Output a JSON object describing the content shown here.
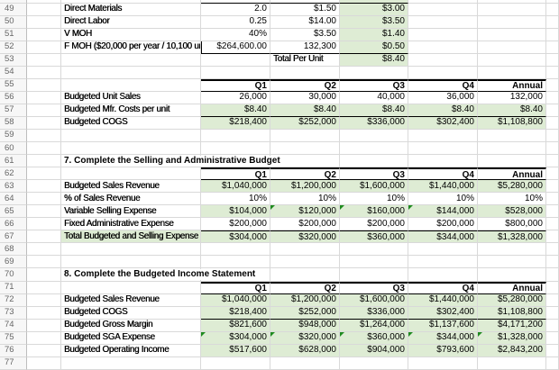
{
  "sheet": {
    "colors": {
      "gridline": "#d9d9d9",
      "section_border": "#000000",
      "highlight_fill_green": "#deecd4",
      "formula_warning_green": "#1f8b1f",
      "row_header_text": "#666666",
      "row_header_bg": "#f7f7f7"
    },
    "rows": [
      {
        "n": "",
        "sliver": true,
        "cells": {
          "D": {
            "t": "",
            "cls": "num bB"
          },
          "E": {
            "t": "",
            "cls": "num bB"
          },
          "F": {
            "t": "",
            "cls": "num green bB"
          }
        }
      },
      {
        "n": 49,
        "cells": {
          "C": {
            "t": "Direct Materials",
            "cls": "lbl"
          },
          "D": {
            "t": "2.0",
            "cls": "num"
          },
          "E": {
            "t": "$1.50",
            "cls": "num"
          },
          "F": {
            "t": "$3.00",
            "cls": "num green"
          }
        }
      },
      {
        "n": 50,
        "cells": {
          "C": {
            "t": "Direct Labor",
            "cls": "lbl"
          },
          "D": {
            "t": "0.25",
            "cls": "num"
          },
          "E": {
            "t": "$14.00",
            "cls": "num"
          },
          "F": {
            "t": "$3.50",
            "cls": "num green"
          }
        }
      },
      {
        "n": 51,
        "cells": {
          "C": {
            "t": "V MOH",
            "cls": "lbl"
          },
          "D": {
            "t": "40%",
            "cls": "num"
          },
          "E": {
            "t": "$3.50",
            "cls": "num"
          },
          "F": {
            "t": "$1.40",
            "cls": "num green"
          }
        }
      },
      {
        "n": 52,
        "cells": {
          "C": {
            "t": "F MOH ($20,000 per year / 10,100 un",
            "cls": "lbl"
          },
          "D": {
            "t": "$264,600.00",
            "cls": "num bB bL"
          },
          "E": {
            "t": "132,300",
            "cls": "num bB"
          },
          "F": {
            "t": "$0.50",
            "cls": "num green bB"
          }
        }
      },
      {
        "n": 53,
        "cells": {
          "E": {
            "t": "Total Per Unit",
            "cls": "lbl"
          },
          "F": {
            "t": "$8.40",
            "cls": "num green"
          }
        }
      },
      {
        "n": 54,
        "cells": {}
      },
      {
        "n": 55,
        "cells": {
          "D": {
            "t": "Q1",
            "cls": "hdr bT2 bB"
          },
          "E": {
            "t": "Q2",
            "cls": "hdr bT2 bB"
          },
          "F": {
            "t": "Q3",
            "cls": "hdr bT2 bB"
          },
          "G": {
            "t": "Q4",
            "cls": "hdr bT2 bB"
          },
          "H": {
            "t": "Annual",
            "cls": "hdr bT2 bB"
          }
        }
      },
      {
        "n": 56,
        "cells": {
          "C": {
            "t": "Budgeted Unit Sales",
            "cls": "lbl"
          },
          "D": {
            "t": "26,000",
            "cls": "num"
          },
          "E": {
            "t": "30,000",
            "cls": "num"
          },
          "F": {
            "t": "40,000",
            "cls": "num"
          },
          "G": {
            "t": "36,000",
            "cls": "num"
          },
          "H": {
            "t": "132,000",
            "cls": "num"
          }
        }
      },
      {
        "n": 57,
        "cells": {
          "C": {
            "t": "Budgeted Mfr. Costs per unit",
            "cls": "lbl"
          },
          "D": {
            "t": "$8.40",
            "cls": "num green bB"
          },
          "E": {
            "t": "$8.40",
            "cls": "num green bB"
          },
          "F": {
            "t": "$8.40",
            "cls": "num green bB"
          },
          "G": {
            "t": "$8.40",
            "cls": "num green bB"
          },
          "H": {
            "t": "$8.40",
            "cls": "num green bB"
          }
        }
      },
      {
        "n": 58,
        "cells": {
          "C": {
            "t": "Budgeted COGS",
            "cls": "lbl"
          },
          "D": {
            "t": "$218,400",
            "cls": "num green"
          },
          "E": {
            "t": "$252,000",
            "cls": "num green"
          },
          "F": {
            "t": "$336,000",
            "cls": "num green"
          },
          "G": {
            "t": "$302,400",
            "cls": "num green"
          },
          "H": {
            "t": "$1,108,800",
            "cls": "num green"
          }
        }
      },
      {
        "n": 59,
        "cells": {}
      },
      {
        "n": 60,
        "cells": {}
      },
      {
        "n": 61,
        "cells": {
          "C": {
            "t": "7. Complete the Selling and Administrative Budget",
            "cls": "title"
          }
        }
      },
      {
        "n": 62,
        "cells": {
          "D": {
            "t": "Q1",
            "cls": "hdr bT2 bB"
          },
          "E": {
            "t": "Q2",
            "cls": "hdr bT2 bB"
          },
          "F": {
            "t": "Q3",
            "cls": "hdr bT2 bB"
          },
          "G": {
            "t": "Q4",
            "cls": "hdr bT2 bB"
          },
          "H": {
            "t": "Annual",
            "cls": "hdr bT2 bB"
          }
        }
      },
      {
        "n": 63,
        "cells": {
          "C": {
            "t": "Budgeted Sales Revenue",
            "cls": "lbl"
          },
          "D": {
            "t": "$1,040,000",
            "cls": "num green"
          },
          "E": {
            "t": "$1,200,000",
            "cls": "num green"
          },
          "F": {
            "t": "$1,600,000",
            "cls": "num green"
          },
          "G": {
            "t": "$1,440,000",
            "cls": "num green"
          },
          "H": {
            "t": "$5,280,000",
            "cls": "num green"
          }
        }
      },
      {
        "n": 64,
        "cells": {
          "C": {
            "t": "% of Sales Revenue",
            "cls": "lbl"
          },
          "D": {
            "t": "10%",
            "cls": "num"
          },
          "E": {
            "t": "10%",
            "cls": "num"
          },
          "F": {
            "t": "10%",
            "cls": "num"
          },
          "G": {
            "t": "10%",
            "cls": "num"
          },
          "H": {
            "t": "10%",
            "cls": "num"
          }
        }
      },
      {
        "n": 65,
        "cells": {
          "C": {
            "t": "Variable Selling Expense",
            "cls": "lbl"
          },
          "D": {
            "t": "$104,000",
            "cls": "num green"
          },
          "E": {
            "t": "$120,000",
            "cls": "num green",
            "tri": true
          },
          "F": {
            "t": "$160,000",
            "cls": "num green",
            "tri": true
          },
          "G": {
            "t": "$144,000",
            "cls": "num green",
            "tri": true
          },
          "H": {
            "t": "$528,000",
            "cls": "num green"
          }
        }
      },
      {
        "n": 66,
        "cells": {
          "C": {
            "t": "Fixed Administrative Expense",
            "cls": "lbl"
          },
          "D": {
            "t": "$200,000",
            "cls": "num"
          },
          "E": {
            "t": "$200,000",
            "cls": "num"
          },
          "F": {
            "t": "$200,000",
            "cls": "num"
          },
          "G": {
            "t": "$200,000",
            "cls": "num"
          },
          "H": {
            "t": "$800,000",
            "cls": "num"
          }
        }
      },
      {
        "n": 67,
        "cells": {
          "C": {
            "t": "Total Budgeted and Selling Expense",
            "cls": "lbl green"
          },
          "D": {
            "t": "$304,000",
            "cls": "num green bT1"
          },
          "E": {
            "t": "$320,000",
            "cls": "num green bT1"
          },
          "F": {
            "t": "$360,000",
            "cls": "num green bT1"
          },
          "G": {
            "t": "$344,000",
            "cls": "num green bT1"
          },
          "H": {
            "t": "$1,328,000",
            "cls": "num green bT1"
          }
        }
      },
      {
        "n": 68,
        "cells": {}
      },
      {
        "n": 69,
        "cells": {}
      },
      {
        "n": 70,
        "cells": {
          "C": {
            "t": "8. Complete the Budgeted Income Statement",
            "cls": "title"
          }
        }
      },
      {
        "n": 71,
        "cells": {
          "D": {
            "t": "Q1",
            "cls": "hdr bT2 bB"
          },
          "E": {
            "t": "Q2",
            "cls": "hdr bT2 bB"
          },
          "F": {
            "t": "Q3",
            "cls": "hdr bT2 bB"
          },
          "G": {
            "t": "Q4",
            "cls": "hdr bT2 bB"
          },
          "H": {
            "t": "Annual",
            "cls": "hdr bT2 bB"
          }
        }
      },
      {
        "n": 72,
        "cells": {
          "C": {
            "t": "Budgeted Sales Revenue",
            "cls": "lbl"
          },
          "D": {
            "t": "$1,040,000",
            "cls": "num green"
          },
          "E": {
            "t": "$1,200,000",
            "cls": "num green"
          },
          "F": {
            "t": "$1,600,000",
            "cls": "num green"
          },
          "G": {
            "t": "$1,440,000",
            "cls": "num green"
          },
          "H": {
            "t": "$5,280,000",
            "cls": "num green"
          }
        }
      },
      {
        "n": 73,
        "cells": {
          "C": {
            "t": "Budgeted COGS",
            "cls": "lbl"
          },
          "D": {
            "t": "$218,400",
            "cls": "num green bB"
          },
          "E": {
            "t": "$252,000",
            "cls": "num green bB"
          },
          "F": {
            "t": "$336,000",
            "cls": "num green bB"
          },
          "G": {
            "t": "$302,400",
            "cls": "num green bB"
          },
          "H": {
            "t": "$1,108,800",
            "cls": "num green bB"
          }
        }
      },
      {
        "n": 74,
        "cells": {
          "C": {
            "t": "Budgeted Gross Margin",
            "cls": "lbl"
          },
          "D": {
            "t": "$821,600",
            "cls": "num green"
          },
          "E": {
            "t": "$948,000",
            "cls": "num green"
          },
          "F": {
            "t": "$1,264,000",
            "cls": "num green"
          },
          "G": {
            "t": "$1,137,600",
            "cls": "num green"
          },
          "H": {
            "t": "$4,171,200",
            "cls": "num green"
          }
        }
      },
      {
        "n": 75,
        "cells": {
          "C": {
            "t": "Budgeted SGA Expense",
            "cls": "lbl"
          },
          "D": {
            "t": "$304,000",
            "cls": "num green",
            "tri": true
          },
          "E": {
            "t": "$320,000",
            "cls": "num green",
            "tri": true
          },
          "F": {
            "t": "$360,000",
            "cls": "num green",
            "tri": true
          },
          "G": {
            "t": "$344,000",
            "cls": "num green",
            "tri": true
          },
          "H": {
            "t": "$1,328,000",
            "cls": "num green",
            "tri": true
          }
        }
      },
      {
        "n": 76,
        "cells": {
          "C": {
            "t": "Budgeted Operating Income",
            "cls": "lbl"
          },
          "D": {
            "t": "$517,600",
            "cls": "num green"
          },
          "E": {
            "t": "$628,000",
            "cls": "num green"
          },
          "F": {
            "t": "$904,000",
            "cls": "num green"
          },
          "G": {
            "t": "$793,600",
            "cls": "num green"
          },
          "H": {
            "t": "$2,843,200",
            "cls": "num green"
          }
        }
      },
      {
        "n": 77,
        "cells": {}
      }
    ]
  }
}
